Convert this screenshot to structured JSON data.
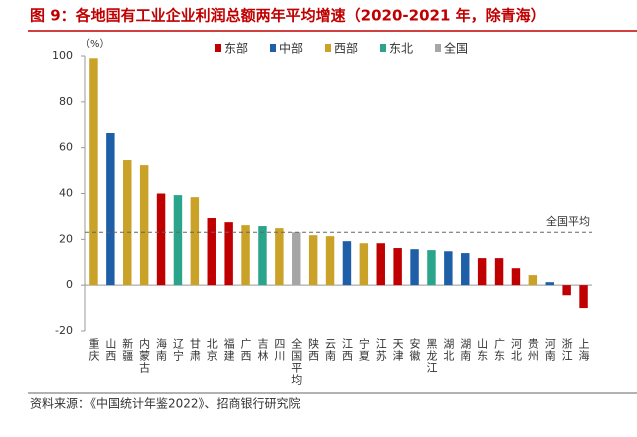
{
  "chart_data": {
    "type": "bar",
    "title": "图 9：各地国有工业企业利润总额两年平均增速（2020-2021 年，除青海）",
    "y_unit": "（%）",
    "source": "资料来源：《中国统计年鉴2022》、招商银行研究院",
    "categories": [
      "重庆",
      "山西",
      "新疆",
      "内蒙古",
      "海南",
      "辽宁",
      "甘肃",
      "北京",
      "福建",
      "广西",
      "吉林",
      "四川",
      "全国平均",
      "陕西",
      "云南",
      "江西",
      "宁夏",
      "江苏",
      "天津",
      "安徽",
      "黑龙江",
      "湖北",
      "湖南",
      "山东",
      "广东",
      "河北",
      "贵州",
      "河南",
      "浙江",
      "上海"
    ],
    "series": [
      {
        "name": "东部",
        "color": "#c00000",
        "values": [
          null,
          null,
          null,
          null,
          40,
          null,
          null,
          29.3,
          27.5,
          null,
          null,
          null,
          null,
          null,
          null,
          null,
          null,
          18.3,
          16.2,
          null,
          null,
          null,
          null,
          11.8,
          11.8,
          7.4,
          null,
          null,
          -4.4,
          -10
        ]
      },
      {
        "name": "中部",
        "color": "#1f5fa8",
        "values": [
          null,
          66.4,
          null,
          null,
          null,
          null,
          null,
          null,
          null,
          null,
          null,
          null,
          null,
          null,
          null,
          19.2,
          null,
          null,
          null,
          15.7,
          null,
          14.8,
          14,
          null,
          null,
          null,
          null,
          1.3,
          null,
          null
        ]
      },
      {
        "name": "西部",
        "color": "#c9a227",
        "values": [
          99,
          null,
          54.6,
          52.4,
          null,
          null,
          38.4,
          null,
          null,
          26.2,
          null,
          24.9,
          null,
          21.8,
          21.4,
          null,
          18.3,
          null,
          null,
          null,
          null,
          null,
          null,
          null,
          null,
          null,
          4.4,
          null,
          null,
          null
        ]
      },
      {
        "name": "东北",
        "color": "#2aa58c",
        "values": [
          null,
          null,
          null,
          null,
          null,
          39.3,
          null,
          null,
          null,
          null,
          25.8,
          null,
          null,
          null,
          null,
          null,
          null,
          null,
          null,
          null,
          15.3,
          null,
          null,
          null,
          null,
          null,
          null,
          null,
          null,
          null
        ]
      },
      {
        "name": "全国",
        "color": "#a6a6a6",
        "values": [
          null,
          null,
          null,
          null,
          null,
          null,
          null,
          null,
          null,
          null,
          null,
          null,
          23.1,
          null,
          null,
          null,
          null,
          null,
          null,
          null,
          null,
          null,
          null,
          null,
          null,
          null,
          null,
          null,
          null,
          null
        ]
      }
    ],
    "reference_line": {
      "label": "全国平均",
      "value": 23.1
    },
    "ylim": [
      -20,
      100
    ],
    "yticks": [
      -20,
      0,
      20,
      40,
      60,
      80,
      100
    ]
  }
}
